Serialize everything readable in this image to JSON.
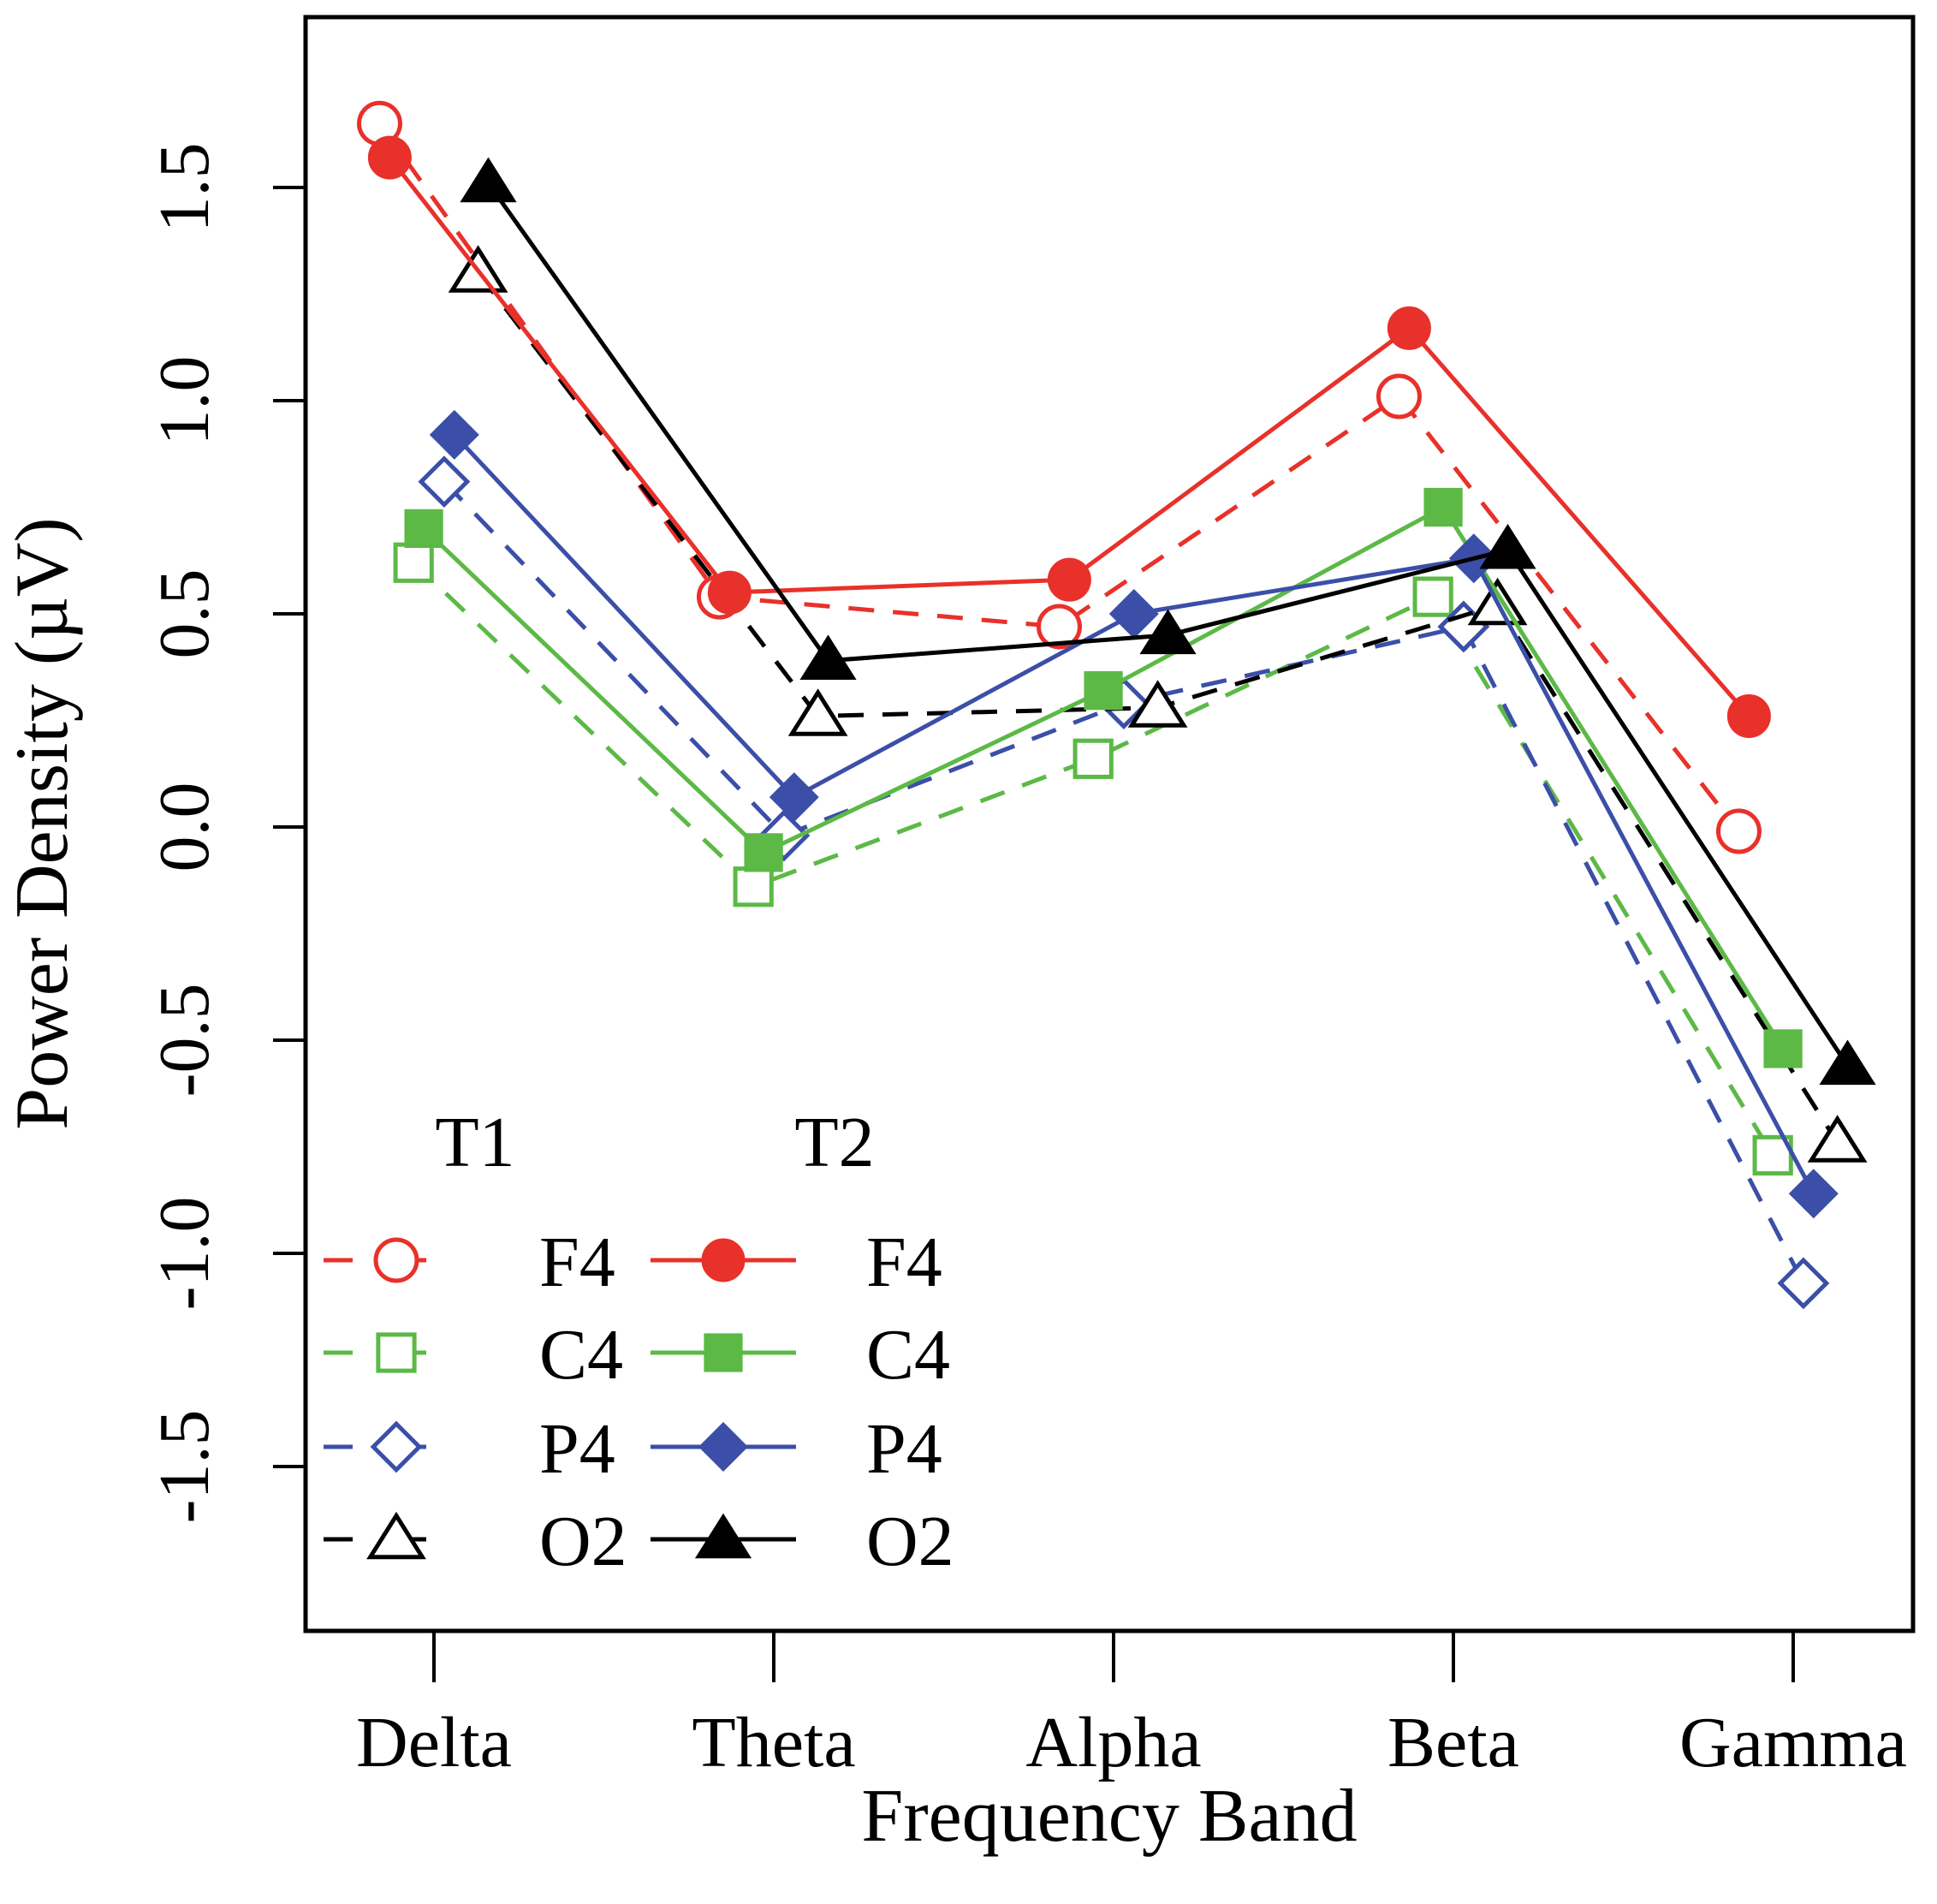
{
  "chart_data": {
    "type": "line",
    "title": "",
    "xlabel": "Frequency Band",
    "ylabel": "Power Density (µV)",
    "categories": [
      "Delta",
      "Theta",
      "Alpha",
      "Beta",
      "Gamma"
    ],
    "ylim": [
      -1.9,
      1.9
    ],
    "yticks": [
      -1.5,
      -1.0,
      -0.5,
      0.0,
      0.5,
      1.0,
      1.5
    ],
    "ytick_labels": [
      "-1.5",
      "-1.0",
      "-0.5",
      "0.0",
      "0.5",
      "1.0",
      "1.5"
    ],
    "grid": false,
    "legend": {
      "placement": "bottom-left",
      "headers": [
        "T1",
        "T2"
      ]
    },
    "series": [
      {
        "name": "F4",
        "group": "T1",
        "color": "#e8312a",
        "line": "dashed",
        "marker": "circle-open",
        "offset": -0.16,
        "values": [
          1.65,
          0.54,
          0.47,
          1.01,
          -0.01
        ]
      },
      {
        "name": "C4",
        "group": "T1",
        "color": "#5cb946",
        "line": "dashed",
        "marker": "square-open",
        "offset": -0.06,
        "values": [
          0.62,
          -0.14,
          0.16,
          0.54,
          -0.77
        ]
      },
      {
        "name": "P4",
        "group": "T1",
        "color": "#3b4fa8",
        "line": "dashed",
        "marker": "diamond-open",
        "offset": 0.03,
        "values": [
          0.81,
          -0.02,
          0.29,
          0.47,
          -1.07
        ]
      },
      {
        "name": "O2",
        "group": "T1",
        "color": "#000000",
        "line": "dashed",
        "marker": "triangle-open",
        "offset": 0.13,
        "values": [
          1.3,
          0.26,
          0.28,
          0.52,
          -0.74
        ]
      },
      {
        "name": "F4",
        "group": "T2",
        "color": "#e8312a",
        "line": "solid",
        "marker": "circle-filled",
        "offset": -0.13,
        "values": [
          1.57,
          0.55,
          0.58,
          1.17,
          0.26
        ]
      },
      {
        "name": "C4",
        "group": "T2",
        "color": "#5cb946",
        "line": "solid",
        "marker": "square-filled",
        "offset": -0.03,
        "values": [
          0.7,
          -0.06,
          0.32,
          0.75,
          -0.52
        ]
      },
      {
        "name": "P4",
        "group": "T2",
        "color": "#3b4fa8",
        "line": "solid",
        "marker": "diamond-filled",
        "offset": 0.06,
        "values": [
          0.92,
          0.07,
          0.5,
          0.63,
          -0.86
        ]
      },
      {
        "name": "O2",
        "group": "T2",
        "color": "#000000",
        "line": "solid",
        "marker": "triangle-filled",
        "offset": 0.16,
        "values": [
          1.51,
          0.39,
          0.45,
          0.65,
          -0.56
        ]
      }
    ]
  }
}
